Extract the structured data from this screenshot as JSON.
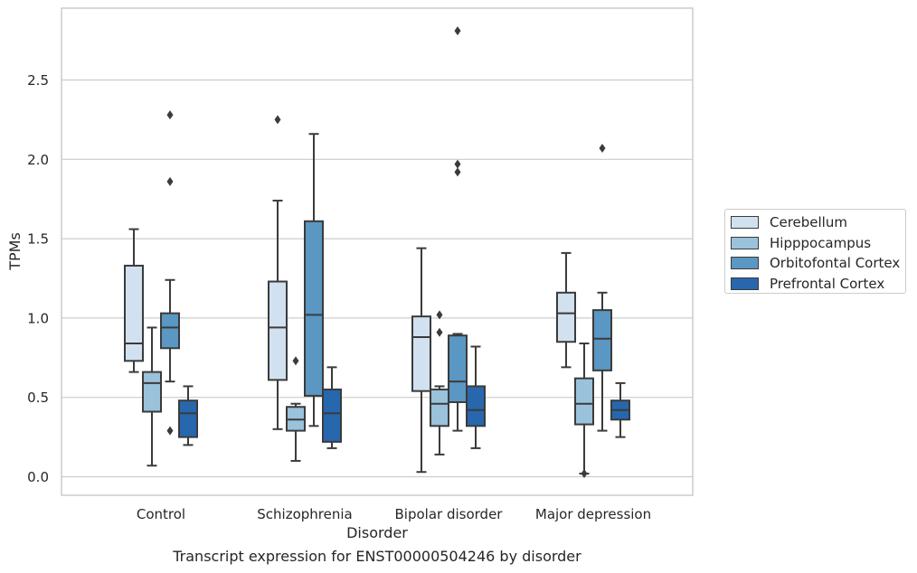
{
  "chart_data": {
    "type": "box",
    "title": "",
    "caption": "Transcript expression for ENST00000504246 by disorder",
    "xlabel": "Disorder",
    "ylabel": "TPMs",
    "ylim": [
      -0.11,
      2.96
    ],
    "yticks": [
      0.0,
      0.5,
      1.0,
      1.5,
      2.0,
      2.5
    ],
    "ytick_labels": [
      "0.0",
      "0.5",
      "1.0",
      "1.5",
      "2.0",
      "2.5"
    ],
    "categories": [
      "Control",
      "Schizophrenia",
      "Bipolar disorder",
      "Major depression"
    ],
    "grid": "horizontal",
    "legend_position": "right",
    "series": [
      {
        "name": "Cerebellum",
        "color": "#d1e1f0",
        "boxes": [
          {
            "whisker_low": 0.66,
            "q1": 0.73,
            "median": 0.84,
            "q3": 1.33,
            "whisker_high": 1.56,
            "outliers": []
          },
          {
            "whisker_low": 0.3,
            "q1": 0.61,
            "median": 0.94,
            "q3": 1.23,
            "whisker_high": 1.74,
            "outliers": [
              2.25
            ]
          },
          {
            "whisker_low": 0.03,
            "q1": 0.54,
            "median": 0.88,
            "q3": 1.01,
            "whisker_high": 1.44,
            "outliers": []
          },
          {
            "whisker_low": 0.69,
            "q1": 0.85,
            "median": 1.03,
            "q3": 1.16,
            "whisker_high": 1.41,
            "outliers": []
          }
        ]
      },
      {
        "name": "Hipppocampus",
        "color": "#9ac2db",
        "boxes": [
          {
            "whisker_low": 0.07,
            "q1": 0.41,
            "median": 0.59,
            "q3": 0.66,
            "whisker_high": 0.94,
            "outliers": []
          },
          {
            "whisker_low": 0.1,
            "q1": 0.29,
            "median": 0.36,
            "q3": 0.44,
            "whisker_high": 0.46,
            "outliers": [
              0.73
            ]
          },
          {
            "whisker_low": 0.14,
            "q1": 0.32,
            "median": 0.46,
            "q3": 0.55,
            "whisker_high": 0.57,
            "outliers": [
              0.91,
              1.02
            ]
          },
          {
            "whisker_low": 0.02,
            "q1": 0.33,
            "median": 0.46,
            "q3": 0.62,
            "whisker_high": 0.84,
            "outliers": [
              0.02
            ]
          }
        ]
      },
      {
        "name": "Orbitofontal Cortex",
        "color": "#5a97c2",
        "boxes": [
          {
            "whisker_low": 0.6,
            "q1": 0.81,
            "median": 0.94,
            "q3": 1.03,
            "whisker_high": 1.24,
            "outliers": [
              0.29,
              1.86,
              2.28
            ]
          },
          {
            "whisker_low": 0.32,
            "q1": 0.51,
            "median": 1.02,
            "q3": 1.61,
            "whisker_high": 2.16,
            "outliers": []
          },
          {
            "whisker_low": 0.29,
            "q1": 0.47,
            "median": 0.6,
            "q3": 0.89,
            "whisker_high": 0.9,
            "outliers": [
              1.92,
              1.97,
              2.81
            ]
          },
          {
            "whisker_low": 0.29,
            "q1": 0.67,
            "median": 0.87,
            "q3": 1.05,
            "whisker_high": 1.16,
            "outliers": [
              2.07
            ]
          }
        ]
      },
      {
        "name": "Prefrontal Cortex",
        "color": "#2767ad",
        "boxes": [
          {
            "whisker_low": 0.2,
            "q1": 0.25,
            "median": 0.4,
            "q3": 0.48,
            "whisker_high": 0.57,
            "outliers": []
          },
          {
            "whisker_low": 0.18,
            "q1": 0.22,
            "median": 0.4,
            "q3": 0.55,
            "whisker_high": 0.69,
            "outliers": []
          },
          {
            "whisker_low": 0.18,
            "q1": 0.32,
            "median": 0.42,
            "q3": 0.57,
            "whisker_high": 0.82,
            "outliers": []
          },
          {
            "whisker_low": 0.25,
            "q1": 0.36,
            "median": 0.42,
            "q3": 0.48,
            "whisker_high": 0.59,
            "outliers": []
          }
        ]
      }
    ]
  }
}
